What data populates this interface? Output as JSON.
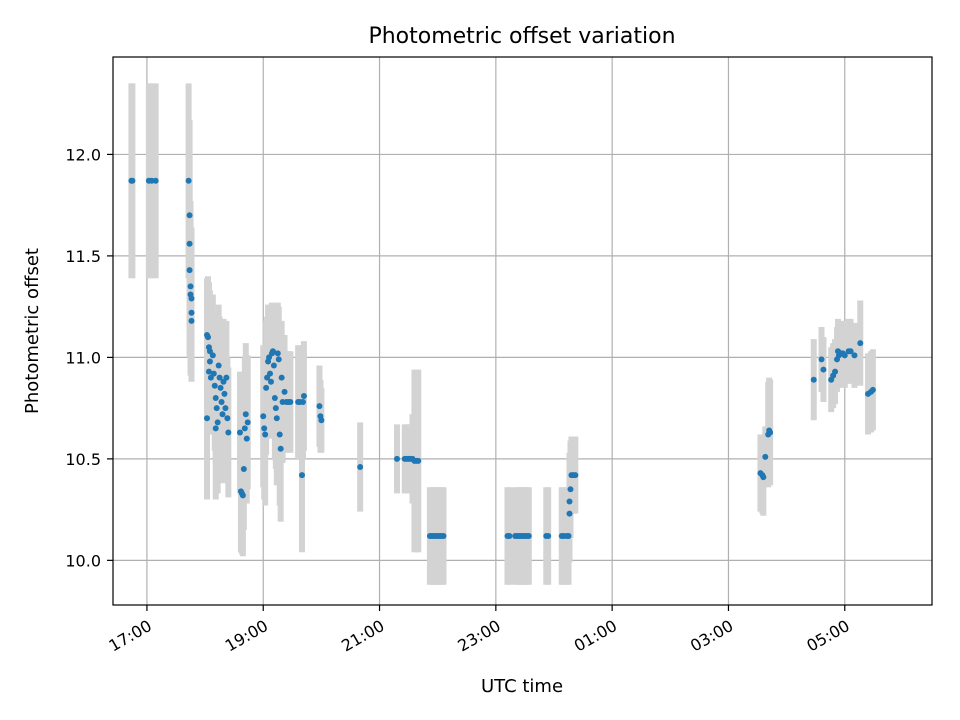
{
  "chart_data": {
    "type": "scatter",
    "title": "Photometric offset variation",
    "xlabel": "UTC time",
    "ylabel": "Photometric offset",
    "xlim": [
      "16:25",
      "06:30"
    ],
    "ylim": [
      9.78,
      12.48
    ],
    "x_day_boundary": "00:00",
    "yticks": [
      10.0,
      10.5,
      11.0,
      11.5,
      12.0
    ],
    "yticklabels": [
      "10.0",
      "10.5",
      "11.0",
      "11.5",
      "12.0"
    ],
    "xticks": [
      "17:00",
      "19:00",
      "21:00",
      "23:00",
      "01:00",
      "03:00",
      "05:00"
    ],
    "xticklabels": [
      "17:00",
      "19:00",
      "21:00",
      "23:00",
      "01:00",
      "03:00",
      "05:00"
    ],
    "grid": true,
    "colors": {
      "points": "#1f77b4",
      "errorbars": "#d3d3d3",
      "grid": "#b0b0b0"
    },
    "points": [
      {
        "x": "16:44",
        "y": 11.87,
        "err": 0.48
      },
      {
        "x": "16:45",
        "y": 11.87,
        "err": 0.48
      },
      {
        "x": "17:02",
        "y": 11.87,
        "err": 0.48
      },
      {
        "x": "17:05",
        "y": 11.87,
        "err": 0.48
      },
      {
        "x": "17:09",
        "y": 11.87,
        "err": 0.48
      },
      {
        "x": "17:43",
        "y": 11.87,
        "err": 0.48
      },
      {
        "x": "17:44",
        "y": 11.7,
        "err": 0.47
      },
      {
        "x": "17:44",
        "y": 11.56,
        "err": 0.45
      },
      {
        "x": "17:44",
        "y": 11.43,
        "err": 0.43
      },
      {
        "x": "17:45",
        "y": 11.35,
        "err": 0.42
      },
      {
        "x": "17:45",
        "y": 11.31,
        "err": 0.4
      },
      {
        "x": "17:46",
        "y": 11.29,
        "err": 0.35
      },
      {
        "x": "17:46",
        "y": 11.22,
        "err": 0.32
      },
      {
        "x": "17:46",
        "y": 11.18,
        "err": 0.3
      },
      {
        "x": "18:02",
        "y": 11.11,
        "err": 0.28
      },
      {
        "x": "18:03",
        "y": 11.1,
        "err": 0.3
      },
      {
        "x": "18:04",
        "y": 11.05,
        "err": 0.32
      },
      {
        "x": "18:05",
        "y": 10.98,
        "err": 0.3
      },
      {
        "x": "18:04",
        "y": 10.93,
        "err": 0.28
      },
      {
        "x": "18:06",
        "y": 10.9,
        "err": 0.28
      },
      {
        "x": "18:05",
        "y": 11.03,
        "err": 0.3
      },
      {
        "x": "18:02",
        "y": 10.7,
        "err": 0.4
      },
      {
        "x": "18:08",
        "y": 11.01,
        "err": 0.3
      },
      {
        "x": "18:09",
        "y": 10.92,
        "err": 0.3
      },
      {
        "x": "18:10",
        "y": 10.86,
        "err": 0.32
      },
      {
        "x": "18:11",
        "y": 10.8,
        "err": 0.33
      },
      {
        "x": "18:11",
        "y": 10.65,
        "err": 0.35
      },
      {
        "x": "18:12",
        "y": 10.75,
        "err": 0.34
      },
      {
        "x": "18:13",
        "y": 10.68,
        "err": 0.35
      },
      {
        "x": "18:14",
        "y": 10.96,
        "err": 0.3
      },
      {
        "x": "18:15",
        "y": 10.9,
        "err": 0.3
      },
      {
        "x": "18:16",
        "y": 10.85,
        "err": 0.32
      },
      {
        "x": "18:17",
        "y": 10.78,
        "err": 0.32
      },
      {
        "x": "18:18",
        "y": 10.72,
        "err": 0.34
      },
      {
        "x": "18:19",
        "y": 10.88,
        "err": 0.31
      },
      {
        "x": "18:20",
        "y": 10.82,
        "err": 0.3
      },
      {
        "x": "18:21",
        "y": 10.75,
        "err": 0.3
      },
      {
        "x": "18:22",
        "y": 10.9,
        "err": 0.28
      },
      {
        "x": "18:23",
        "y": 10.7,
        "err": 0.3
      },
      {
        "x": "18:24",
        "y": 10.63,
        "err": 0.32
      },
      {
        "x": "18:36",
        "y": 10.63,
        "err": 0.3
      },
      {
        "x": "18:37",
        "y": 10.34,
        "err": 0.3
      },
      {
        "x": "18:38",
        "y": 10.33,
        "err": 0.3
      },
      {
        "x": "18:39",
        "y": 10.32,
        "err": 0.3
      },
      {
        "x": "18:40",
        "y": 10.45,
        "err": 0.3
      },
      {
        "x": "18:41",
        "y": 10.65,
        "err": 0.35
      },
      {
        "x": "18:42",
        "y": 10.72,
        "err": 0.35
      },
      {
        "x": "18:43",
        "y": 10.6,
        "err": 0.32
      },
      {
        "x": "18:44",
        "y": 10.68,
        "err": 0.33
      },
      {
        "x": "19:00",
        "y": 10.71,
        "err": 0.35
      },
      {
        "x": "19:01",
        "y": 10.65,
        "err": 0.35
      },
      {
        "x": "19:02",
        "y": 10.62,
        "err": 0.35
      },
      {
        "x": "19:03",
        "y": 10.85,
        "err": 0.33
      },
      {
        "x": "19:04",
        "y": 10.9,
        "err": 0.3
      },
      {
        "x": "19:05",
        "y": 10.98,
        "err": 0.28
      },
      {
        "x": "19:06",
        "y": 11.0,
        "err": 0.25
      },
      {
        "x": "19:07",
        "y": 10.92,
        "err": 0.27
      },
      {
        "x": "19:08",
        "y": 10.88,
        "err": 0.28
      },
      {
        "x": "19:09",
        "y": 11.02,
        "err": 0.25
      },
      {
        "x": "19:10",
        "y": 11.03,
        "err": 0.23
      },
      {
        "x": "19:11",
        "y": 10.96,
        "err": 0.24
      },
      {
        "x": "19:12",
        "y": 10.8,
        "err": 0.3
      },
      {
        "x": "19:13",
        "y": 10.75,
        "err": 0.3
      },
      {
        "x": "19:14",
        "y": 10.7,
        "err": 0.33
      },
      {
        "x": "19:15",
        "y": 11.02,
        "err": 0.25
      },
      {
        "x": "19:16",
        "y": 10.99,
        "err": 0.26
      },
      {
        "x": "19:17",
        "y": 10.62,
        "err": 0.35
      },
      {
        "x": "19:18",
        "y": 10.55,
        "err": 0.36
      },
      {
        "x": "19:19",
        "y": 10.9,
        "err": 0.28
      },
      {
        "x": "19:20",
        "y": 10.78,
        "err": 0.3
      },
      {
        "x": "19:22",
        "y": 10.83,
        "err": 0.28
      },
      {
        "x": "19:24",
        "y": 10.78,
        "err": 0.25
      },
      {
        "x": "19:26",
        "y": 10.78,
        "err": 0.25
      },
      {
        "x": "19:28",
        "y": 10.78,
        "err": 0.25
      },
      {
        "x": "19:36",
        "y": 10.78,
        "err": 0.28
      },
      {
        "x": "19:38",
        "y": 10.78,
        "err": 0.28
      },
      {
        "x": "19:40",
        "y": 10.42,
        "err": 0.38
      },
      {
        "x": "19:41",
        "y": 10.78,
        "err": 0.28
      },
      {
        "x": "19:42",
        "y": 10.81,
        "err": 0.27
      },
      {
        "x": "19:58",
        "y": 10.76,
        "err": 0.2
      },
      {
        "x": "19:59",
        "y": 10.71,
        "err": 0.18
      },
      {
        "x": "20:00",
        "y": 10.69,
        "err": 0.16
      },
      {
        "x": "20:40",
        "y": 10.46,
        "err": 0.22
      },
      {
        "x": "21:18",
        "y": 10.5,
        "err": 0.17
      },
      {
        "x": "21:26",
        "y": 10.5,
        "err": 0.17
      },
      {
        "x": "21:28",
        "y": 10.5,
        "err": 0.17
      },
      {
        "x": "21:30",
        "y": 10.5,
        "err": 0.17
      },
      {
        "x": "21:32",
        "y": 10.5,
        "err": 0.17
      },
      {
        "x": "21:34",
        "y": 10.5,
        "err": 0.22
      },
      {
        "x": "21:36",
        "y": 10.49,
        "err": 0.45
      },
      {
        "x": "21:38",
        "y": 10.49,
        "err": 0.45
      },
      {
        "x": "21:40",
        "y": 10.49,
        "err": 0.45
      },
      {
        "x": "21:52",
        "y": 10.12,
        "err": 0.24
      },
      {
        "x": "21:54",
        "y": 10.12,
        "err": 0.24
      },
      {
        "x": "21:56",
        "y": 10.12,
        "err": 0.24
      },
      {
        "x": "21:58",
        "y": 10.12,
        "err": 0.24
      },
      {
        "x": "22:00",
        "y": 10.12,
        "err": 0.24
      },
      {
        "x": "22:02",
        "y": 10.12,
        "err": 0.24
      },
      {
        "x": "22:04",
        "y": 10.12,
        "err": 0.24
      },
      {
        "x": "22:06",
        "y": 10.12,
        "err": 0.24
      },
      {
        "x": "23:12",
        "y": 10.12,
        "err": 0.24
      },
      {
        "x": "23:14",
        "y": 10.12,
        "err": 0.24
      },
      {
        "x": "23:20",
        "y": 10.12,
        "err": 0.24
      },
      {
        "x": "23:22",
        "y": 10.12,
        "err": 0.24
      },
      {
        "x": "23:24",
        "y": 10.12,
        "err": 0.24
      },
      {
        "x": "23:26",
        "y": 10.12,
        "err": 0.24
      },
      {
        "x": "23:28",
        "y": 10.12,
        "err": 0.24
      },
      {
        "x": "23:30",
        "y": 10.12,
        "err": 0.24
      },
      {
        "x": "23:32",
        "y": 10.12,
        "err": 0.24
      },
      {
        "x": "23:34",
        "y": 10.12,
        "err": 0.24
      },
      {
        "x": "23:52",
        "y": 10.12,
        "err": 0.24
      },
      {
        "x": "23:54",
        "y": 10.12,
        "err": 0.24
      },
      {
        "x": "00:08",
        "y": 10.12,
        "err": 0.24
      },
      {
        "x": "00:10",
        "y": 10.12,
        "err": 0.24
      },
      {
        "x": "00:13",
        "y": 10.12,
        "err": 0.24
      },
      {
        "x": "00:15",
        "y": 10.12,
        "err": 0.24
      },
      {
        "x": "00:16",
        "y": 10.23,
        "err": 0.24
      },
      {
        "x": "00:16",
        "y": 10.29,
        "err": 0.24
      },
      {
        "x": "00:17",
        "y": 10.35,
        "err": 0.24
      },
      {
        "x": "00:18",
        "y": 10.42,
        "err": 0.19
      },
      {
        "x": "00:20",
        "y": 10.42,
        "err": 0.19
      },
      {
        "x": "00:22",
        "y": 10.42,
        "err": 0.19
      },
      {
        "x": "03:33",
        "y": 10.43,
        "err": 0.19
      },
      {
        "x": "03:35",
        "y": 10.42,
        "err": 0.19
      },
      {
        "x": "03:36",
        "y": 10.41,
        "err": 0.19
      },
      {
        "x": "03:38",
        "y": 10.51,
        "err": 0.15
      },
      {
        "x": "03:41",
        "y": 10.62,
        "err": 0.26
      },
      {
        "x": "03:42",
        "y": 10.64,
        "err": 0.26
      },
      {
        "x": "03:43",
        "y": 10.63,
        "err": 0.26
      },
      {
        "x": "04:28",
        "y": 10.89,
        "err": 0.2
      },
      {
        "x": "04:36",
        "y": 10.99,
        "err": 0.16
      },
      {
        "x": "04:38",
        "y": 10.94,
        "err": 0.16
      },
      {
        "x": "04:46",
        "y": 10.89,
        "err": 0.16
      },
      {
        "x": "04:48",
        "y": 10.91,
        "err": 0.16
      },
      {
        "x": "04:50",
        "y": 10.93,
        "err": 0.16
      },
      {
        "x": "04:52",
        "y": 10.99,
        "err": 0.16
      },
      {
        "x": "04:53",
        "y": 11.03,
        "err": 0.16
      },
      {
        "x": "04:54",
        "y": 11.01,
        "err": 0.16
      },
      {
        "x": "04:56",
        "y": 11.02,
        "err": 0.16
      },
      {
        "x": "04:58",
        "y": 11.02,
        "err": 0.16
      },
      {
        "x": "05:00",
        "y": 11.01,
        "err": 0.16
      },
      {
        "x": "05:04",
        "y": 11.03,
        "err": 0.16
      },
      {
        "x": "05:06",
        "y": 11.03,
        "err": 0.16
      },
      {
        "x": "05:10",
        "y": 11.01,
        "err": 0.16
      },
      {
        "x": "05:16",
        "y": 11.07,
        "err": 0.21
      },
      {
        "x": "05:24",
        "y": 10.82,
        "err": 0.2
      },
      {
        "x": "05:27",
        "y": 10.83,
        "err": 0.2
      },
      {
        "x": "05:29",
        "y": 10.84,
        "err": 0.2
      }
    ]
  }
}
